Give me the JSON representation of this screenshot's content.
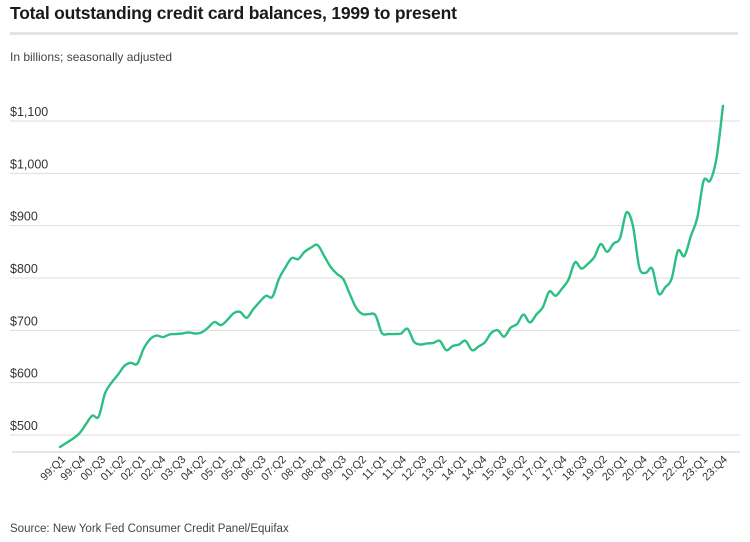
{
  "title": "Total outstanding credit card balances, 1999 to present",
  "subtitle": "In billions; seasonally adjusted",
  "source": "Source: New York Fed Consumer Credit Panel/Equifax",
  "colors": {
    "line": "#2bbf84",
    "grid": "#dddddd",
    "text": "#333333"
  },
  "chart_data": {
    "type": "line",
    "title": "Total outstanding credit card balances, 1999 to present",
    "ylabel": "In billions; seasonally adjusted",
    "ylim": [
      460,
      1140
    ],
    "y_ticks": [
      500,
      600,
      700,
      800,
      900,
      1000,
      1100
    ],
    "y_tick_labels": [
      "$500",
      "$600",
      "$700",
      "$800",
      "$900",
      "$1,000",
      "$1,100"
    ],
    "grid": true,
    "x_tick_labels": [
      "99:Q1",
      "99:Q4",
      "00:Q3",
      "01:Q2",
      "02:Q1",
      "02:Q4",
      "03:Q3",
      "04:Q2",
      "05:Q1",
      "05:Q4",
      "06:Q3",
      "07:Q2",
      "08:Q1",
      "08:Q4",
      "09:Q3",
      "10:Q2",
      "11:Q1",
      "11:Q4",
      "12:Q3",
      "13:Q2",
      "14:Q1",
      "14:Q4",
      "15:Q3",
      "16:Q2",
      "17:Q1",
      "17:Q4",
      "18:Q3",
      "19:Q2",
      "20:Q1",
      "20:Q4",
      "21:Q3",
      "22:Q2",
      "23:Q1",
      "23:Q4"
    ],
    "series": [
      {
        "values": [
          477,
          485,
          493,
          503,
          520,
          537,
          535,
          580,
          600,
          615,
          632,
          638,
          636,
          665,
          683,
          690,
          687,
          692,
          693,
          694,
          696,
          694,
          696,
          705,
          716,
          710,
          720,
          733,
          735,
          724,
          740,
          754,
          766,
          764,
          798,
          820,
          838,
          836,
          850,
          858,
          863,
          843,
          822,
          808,
          798,
          770,
          743,
          731,
          731,
          729,
          695,
          693,
          693,
          694,
          703,
          678,
          673,
          675,
          676,
          680,
          662,
          670,
          673,
          680,
          662,
          669,
          677,
          695,
          700,
          688,
          705,
          712,
          730,
          715,
          730,
          744,
          774,
          766,
          780,
          797,
          830,
          818,
          827,
          840,
          865,
          850,
          866,
          876,
          925,
          900,
          820,
          810,
          818,
          770,
          782,
          798,
          852,
          842,
          880,
          915,
          986,
          986,
          1030,
          1129
        ]
      }
    ]
  }
}
